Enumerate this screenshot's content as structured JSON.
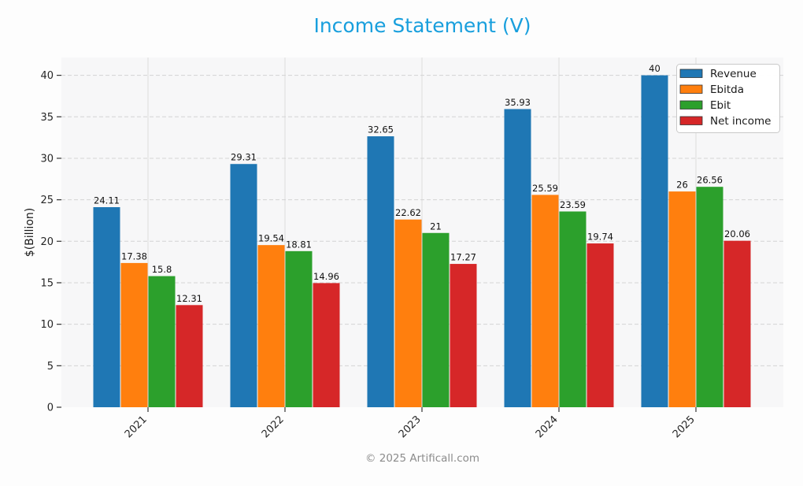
{
  "title": "Income Statement (V)",
  "footer": "© 2025 Artificall.com",
  "colors": {
    "title": "#189fdd",
    "page_bg": "#fdfdfd",
    "plot_bg": "#f7f7f8",
    "grid_h": "#d4d4d4",
    "grid_v": "#dcdcdc",
    "tick": "#333333",
    "tick_text": "#262626",
    "value_label_text": "#111111",
    "legend_bg": "#ffffff",
    "legend_border": "#c9c9c9",
    "legend_text": "#1a1a1a",
    "footer_text": "#8c8c8c"
  },
  "chart_data": {
    "type": "bar",
    "title": "Income Statement (V)",
    "categories": [
      "2021",
      "2022",
      "2023",
      "2024",
      "2025"
    ],
    "series": [
      {
        "name": "Revenue",
        "color": "#1f77b4",
        "values": [
          24.11,
          29.31,
          32.65,
          35.93,
          40
        ]
      },
      {
        "name": "Ebitda",
        "color": "#ff7f0e",
        "values": [
          17.38,
          19.54,
          22.62,
          25.59,
          26
        ]
      },
      {
        "name": "Ebit",
        "color": "#2ca02c",
        "values": [
          15.8,
          18.81,
          21,
          23.59,
          26.56
        ]
      },
      {
        "name": "Net income",
        "color": "#d62728",
        "values": [
          12.31,
          14.96,
          17.27,
          19.74,
          20.06
        ]
      }
    ],
    "xlabel": "",
    "ylabel": "$(Billion)",
    "ylim": [
      0,
      42.1
    ],
    "yticks": [
      0,
      5,
      10,
      15,
      20,
      25,
      30,
      35,
      40
    ],
    "grid": true,
    "bar_value_labels": true,
    "legend_position": "upper right",
    "x_tick_rotation_deg": 45
  }
}
